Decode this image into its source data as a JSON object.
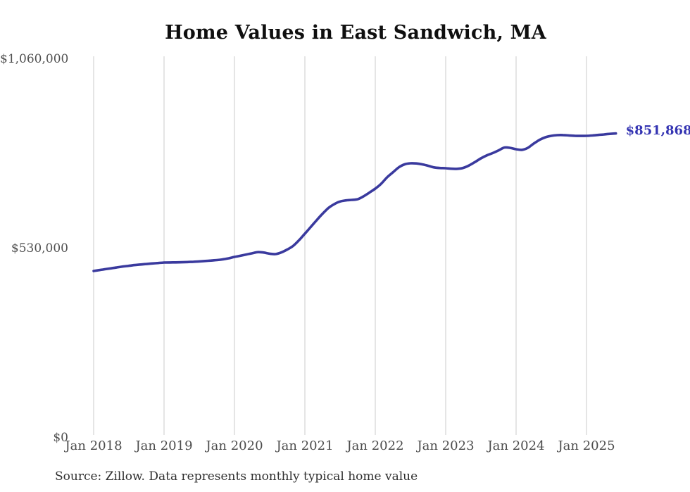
{
  "title": "Home Values in East Sandwich, MA",
  "source": "Source: Zillow. Data represents monthly typical home value",
  "end_label": {
    "text": "$851,868"
  },
  "colors": {
    "line": "#3a3a9e",
    "end_label": "#3434b2",
    "grid": "#cbcbcb",
    "axis_text": "#4c4c4c",
    "title_text": "#0f0f0f"
  },
  "y_axis": {
    "ticks": [
      {
        "value": 0,
        "label": "$0"
      },
      {
        "value": 530000,
        "label": "$530,000"
      },
      {
        "value": 1060000,
        "label": "$1,060,000"
      }
    ]
  },
  "x_axis": {
    "ticks": [
      {
        "month_index": 0,
        "label": "Jan 2018"
      },
      {
        "month_index": 12,
        "label": "Jan 2019"
      },
      {
        "month_index": 24,
        "label": "Jan 2020"
      },
      {
        "month_index": 36,
        "label": "Jan 2021"
      },
      {
        "month_index": 48,
        "label": "Jan 2022"
      },
      {
        "month_index": 60,
        "label": "Jan 2023"
      },
      {
        "month_index": 72,
        "label": "Jan 2024"
      },
      {
        "month_index": 84,
        "label": "Jan 2025"
      }
    ]
  },
  "chart_data": {
    "type": "line",
    "title": "Home Values in East Sandwich, MA",
    "x_start": "2018-01",
    "x_end": "2025-06",
    "x_interval": "monthly",
    "x_tick_labels": [
      "Jan 2018",
      "Jan 2019",
      "Jan 2020",
      "Jan 2021",
      "Jan 2022",
      "Jan 2023",
      "Jan 2024",
      "Jan 2025"
    ],
    "y_tick_labels": [
      "$0",
      "$530,000",
      "$1,060,000"
    ],
    "ylim": [
      0,
      1060000
    ],
    "grid": "vertical-only",
    "legend": "none",
    "final_value_label": "$851,868",
    "series": [
      {
        "name": "Monthly typical home value ($)",
        "values": [
          467000,
          469500,
          472000,
          474500,
          477000,
          479500,
          481500,
          483500,
          485000,
          486500,
          488000,
          489300,
          490500,
          490800,
          491000,
          491400,
          492000,
          492800,
          493800,
          495000,
          496200,
          497500,
          499500,
          502500,
          506300,
          509500,
          513000,
          516500,
          519800,
          518500,
          515500,
          514200,
          519000,
          527000,
          537000,
          553000,
          571400,
          590000,
          609000,
          627000,
          643000,
          654000,
          661500,
          664500,
          666000,
          668000,
          676000,
          686500,
          697500,
          711000,
          729000,
          743000,
          757000,
          765500,
          768400,
          768000,
          765500,
          761500,
          757000,
          755200,
          754600,
          753200,
          753000,
          755500,
          762500,
          772000,
          782200,
          790500,
          797000,
          804500,
          812500,
          811500,
          807800,
          806000,
          811500,
          823500,
          834000,
          841300,
          845300,
          847200,
          847500,
          846500,
          845500,
          845000,
          845300,
          846200,
          847800,
          849200,
          850800,
          851868
        ]
      }
    ]
  }
}
